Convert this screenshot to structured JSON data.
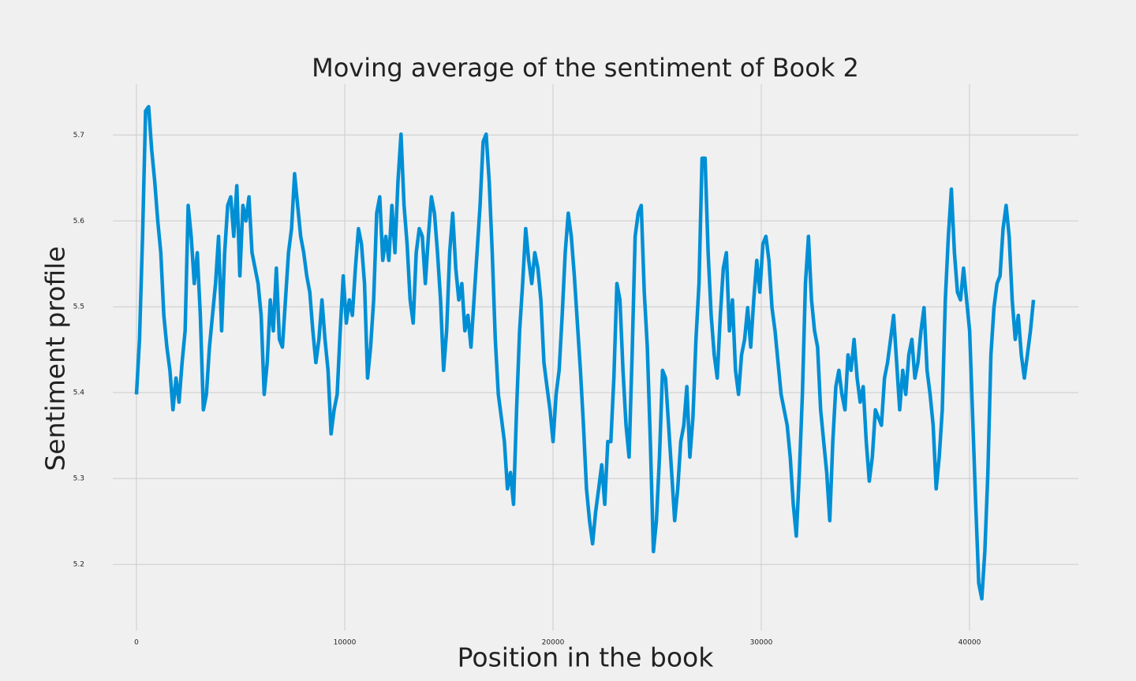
{
  "chart_data": {
    "type": "line",
    "title": "Moving average of the sentiment of Book 2",
    "x_label": "Position in the book",
    "y_label": "Sentiment profile",
    "xlim": [
      -1136,
      45227
    ],
    "ylim": [
      5.123,
      5.759
    ],
    "xticks": [
      0,
      10000,
      20000,
      30000,
      40000
    ],
    "yticks": [
      5.2,
      5.3,
      5.4,
      5.5,
      5.6,
      5.7
    ],
    "grid": true,
    "x": [
      0,
      146,
      292,
      438,
      584,
      730,
      876,
      1022,
      1168,
      1314,
      1460,
      1606,
      1752,
      1898,
      2044,
      2190,
      2336,
      2482,
      2628,
      2774,
      2920,
      3066,
      3212,
      3358,
      3504,
      3650,
      3796,
      3942,
      4088,
      4234,
      4380,
      4526,
      4672,
      4818,
      4964,
      5110,
      5256,
      5402,
      5548,
      5694,
      5840,
      5986,
      6132,
      6278,
      6424,
      6570,
      6716,
      6862,
      7008,
      7154,
      7300,
      7446,
      7592,
      7738,
      7884,
      8030,
      8176,
      8322,
      8468,
      8614,
      8760,
      8906,
      9052,
      9198,
      9344,
      9490,
      9636,
      9782,
      9928,
      10074,
      10220,
      10366,
      10512,
      10658,
      10804,
      10950,
      11096,
      11242,
      11388,
      11534,
      11680,
      11826,
      11972,
      12118,
      12264,
      12410,
      12556,
      12702,
      12848,
      12994,
      13140,
      13286,
      13432,
      13578,
      13724,
      13870,
      14016,
      14162,
      14308,
      14454,
      14600,
      14746,
      14892,
      15038,
      15184,
      15330,
      15476,
      15622,
      15768,
      15914,
      16060,
      16206,
      16352,
      16498,
      16644,
      16790,
      16936,
      17082,
      17228,
      17374,
      17520,
      17666,
      17812,
      17958,
      18104,
      18250,
      18396,
      18542,
      18688,
      18834,
      18980,
      19126,
      19272,
      19418,
      19564,
      19710,
      19856,
      20002,
      20148,
      20294,
      20440,
      20586,
      20732,
      20878,
      21024,
      21170,
      21316,
      21462,
      21608,
      21754,
      21900,
      22046,
      22192,
      22338,
      22484,
      22630,
      22776,
      22922,
      23068,
      23214,
      23360,
      23506,
      23652,
      23798,
      23944,
      24090,
      24236,
      24382,
      24528,
      24674,
      24820,
      24966,
      25112,
      25258,
      25404,
      25550,
      25696,
      25842,
      25988,
      26134,
      26280,
      26426,
      26572,
      26718,
      26864,
      27010,
      27156,
      27302,
      27448,
      27594,
      27740,
      27886,
      28032,
      28178,
      28324,
      28470,
      28616,
      28762,
      28908,
      29054,
      29200,
      29346,
      29492,
      29638,
      29784,
      29930,
      30076,
      30222,
      30368,
      30514,
      30660,
      30806,
      30952,
      31098,
      31244,
      31390,
      31536,
      31682,
      31828,
      31974,
      32120,
      32266,
      32412,
      32558,
      32704,
      32850,
      32996,
      33142,
      33288,
      33434,
      33580,
      33726,
      33872,
      34018,
      34164,
      34310,
      34456,
      34602,
      34748,
      34894,
      35040,
      35186,
      35332,
      35478,
      35624,
      35770,
      35916,
      36062,
      36208,
      36354,
      36500,
      36646,
      36792,
      36938,
      37084,
      37230,
      37376,
      37522,
      37668,
      37814,
      37960,
      38106,
      38252,
      38398,
      38544,
      38690,
      38836,
      38982,
      39128,
      39274,
      39420,
      39566,
      39712,
      39858,
      40004,
      40150,
      40296,
      40442,
      40588,
      40734,
      40880,
      41026,
      41172,
      41318,
      41464,
      41610,
      41756,
      41902,
      42048,
      42194,
      42340,
      42486,
      42632,
      42778,
      42924,
      43070
    ],
    "series": [
      {
        "color": "#008fd5",
        "values": [
          5.398,
          5.462,
          5.582,
          5.728,
          5.733,
          5.683,
          5.646,
          5.6,
          5.563,
          5.49,
          5.453,
          5.426,
          5.38,
          5.417,
          5.389,
          5.435,
          5.472,
          5.618,
          5.582,
          5.527,
          5.563,
          5.49,
          5.38,
          5.398,
          5.453,
          5.49,
          5.527,
          5.582,
          5.472,
          5.563,
          5.618,
          5.628,
          5.582,
          5.641,
          5.536,
          5.618,
          5.6,
          5.628,
          5.563,
          5.545,
          5.527,
          5.49,
          5.398,
          5.435,
          5.508,
          5.472,
          5.545,
          5.462,
          5.453,
          5.508,
          5.563,
          5.591,
          5.655,
          5.618,
          5.582,
          5.563,
          5.536,
          5.517,
          5.472,
          5.435,
          5.462,
          5.508,
          5.462,
          5.426,
          5.352,
          5.38,
          5.398,
          5.472,
          5.536,
          5.481,
          5.508,
          5.49,
          5.545,
          5.591,
          5.573,
          5.527,
          5.417,
          5.453,
          5.508,
          5.609,
          5.628,
          5.554,
          5.582,
          5.554,
          5.618,
          5.563,
          5.646,
          5.701,
          5.618,
          5.573,
          5.508,
          5.481,
          5.563,
          5.591,
          5.582,
          5.527,
          5.582,
          5.628,
          5.609,
          5.563,
          5.508,
          5.426,
          5.472,
          5.563,
          5.609,
          5.545,
          5.508,
          5.527,
          5.472,
          5.49,
          5.453,
          5.508,
          5.563,
          5.618,
          5.692,
          5.701,
          5.646,
          5.563,
          5.462,
          5.398,
          5.371,
          5.343,
          5.288,
          5.307,
          5.27,
          5.38,
          5.472,
          5.527,
          5.591,
          5.554,
          5.527,
          5.563,
          5.545,
          5.508,
          5.435,
          5.407,
          5.38,
          5.343,
          5.398,
          5.426,
          5.49,
          5.563,
          5.609,
          5.582,
          5.536,
          5.481,
          5.426,
          5.362,
          5.288,
          5.251,
          5.224,
          5.261,
          5.288,
          5.316,
          5.27,
          5.343,
          5.343,
          5.417,
          5.527,
          5.508,
          5.426,
          5.362,
          5.325,
          5.444,
          5.582,
          5.609,
          5.618,
          5.517,
          5.453,
          5.343,
          5.215,
          5.251,
          5.325,
          5.426,
          5.417,
          5.362,
          5.307,
          5.251,
          5.288,
          5.343,
          5.362,
          5.407,
          5.325,
          5.371,
          5.462,
          5.527,
          5.673,
          5.673,
          5.563,
          5.49,
          5.444,
          5.417,
          5.49,
          5.545,
          5.563,
          5.472,
          5.508,
          5.426,
          5.398,
          5.444,
          5.462,
          5.499,
          5.453,
          5.508,
          5.554,
          5.517,
          5.573,
          5.582,
          5.554,
          5.499,
          5.472,
          5.435,
          5.398,
          5.38,
          5.362,
          5.325,
          5.27,
          5.233,
          5.307,
          5.398,
          5.527,
          5.582,
          5.508,
          5.472,
          5.453,
          5.38,
          5.343,
          5.307,
          5.251,
          5.343,
          5.407,
          5.426,
          5.398,
          5.38,
          5.444,
          5.426,
          5.462,
          5.417,
          5.389,
          5.407,
          5.343,
          5.297,
          5.325,
          5.38,
          5.371,
          5.362,
          5.417,
          5.435,
          5.462,
          5.49,
          5.435,
          5.38,
          5.426,
          5.398,
          5.444,
          5.462,
          5.417,
          5.435,
          5.472,
          5.499,
          5.426,
          5.398,
          5.362,
          5.288,
          5.325,
          5.38,
          5.508,
          5.582,
          5.637,
          5.563,
          5.517,
          5.508,
          5.545,
          5.508,
          5.472,
          5.371,
          5.27,
          5.178,
          5.16,
          5.215,
          5.307,
          5.444,
          5.499,
          5.527,
          5.536,
          5.591,
          5.618,
          5.582,
          5.508,
          5.462,
          5.49,
          5.444,
          5.417,
          5.444,
          5.472,
          5.508
        ]
      }
    ]
  }
}
